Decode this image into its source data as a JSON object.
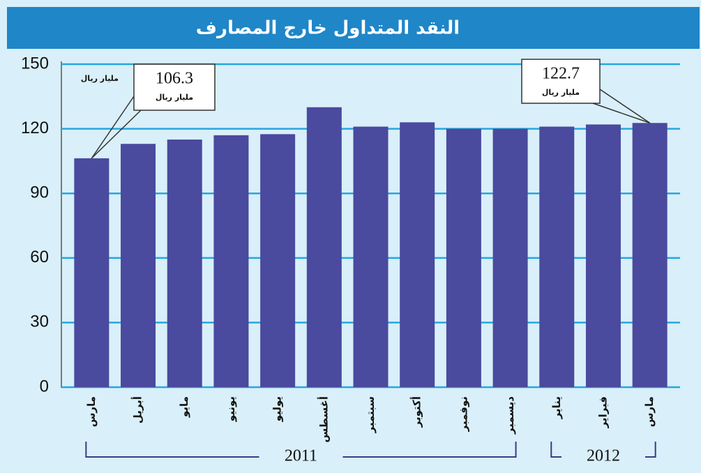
{
  "chart_data": {
    "type": "bar",
    "title": "النقد المتداول خارج المصارف",
    "unit": "مليار ريال",
    "categories": [
      "مارس",
      "أبريل",
      "مايو",
      "يونيو",
      "يوليو",
      "أغسطس",
      "سبتمبر",
      "أكتوبر",
      "نوفمبر",
      "ديسمبر",
      "يناير",
      "فبراير",
      "مارس"
    ],
    "values": [
      106.3,
      113,
      115,
      117,
      117.5,
      130,
      121,
      123,
      120,
      120,
      121,
      122,
      122.7
    ],
    "color": "#4a4a9e",
    "groups": [
      {
        "name": "2011",
        "count": 10
      },
      {
        "name": "2012",
        "count": 3
      }
    ],
    "ylim": [
      0,
      150
    ],
    "yticks": [
      0,
      30,
      60,
      90,
      120,
      150
    ],
    "grid": true
  }
}
